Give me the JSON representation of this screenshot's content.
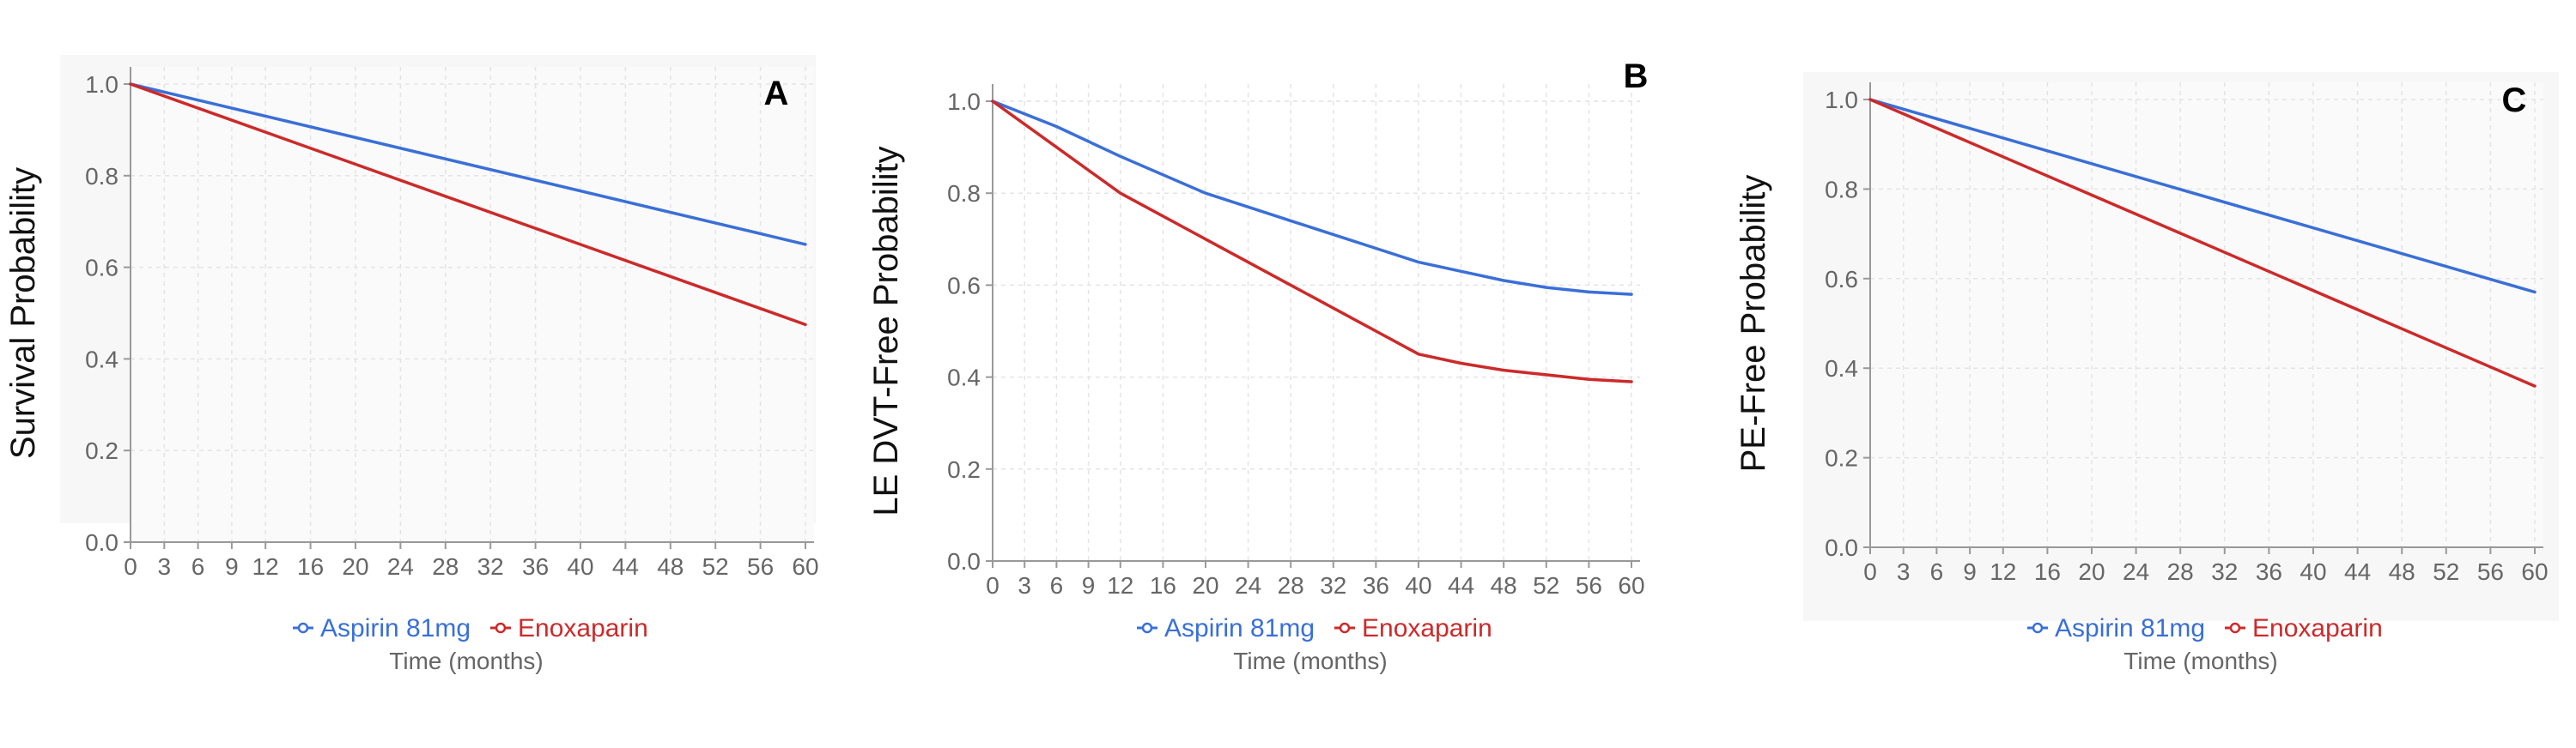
{
  "colors": {
    "aspirin": "#3a6fd8",
    "enoxaparin": "#cc2a2a"
  },
  "chart_data": [
    {
      "type": "line",
      "panel_label": "A",
      "ylabel": "Survival Probability",
      "xlabel": "Time (months)",
      "xlim": [
        0,
        60
      ],
      "ylim": [
        0,
        1
      ],
      "x_ticks": [
        0,
        3,
        6,
        9,
        12,
        16,
        20,
        24,
        28,
        32,
        36,
        40,
        44,
        48,
        52,
        56,
        60
      ],
      "x_tick_labels": [
        "0",
        "3",
        "6",
        "9",
        "12",
        "16",
        "20",
        "24",
        "28",
        "32",
        "36",
        "40",
        "44",
        "48",
        "52",
        "56",
        "60"
      ],
      "y_ticks": [
        0,
        0.2,
        0.4,
        0.6,
        0.8,
        1.0
      ],
      "y_tick_labels": [
        "0.0",
        "0.2",
        "0.4",
        "0.6",
        "0.8",
        "1.0"
      ],
      "grid": true,
      "legend_position": "bottom",
      "series": [
        {
          "name": "Aspirin 81mg",
          "color": "#3a6fd8",
          "x": [
            0,
            60
          ],
          "y": [
            1.0,
            0.65
          ]
        },
        {
          "name": "Enoxaparin",
          "color": "#cc2a2a",
          "x": [
            0,
            60
          ],
          "y": [
            1.0,
            0.475
          ]
        }
      ]
    },
    {
      "type": "line",
      "panel_label": "B",
      "ylabel": "LE DVT-Free Probability",
      "xlabel": "Time (months)",
      "xlim": [
        0,
        60
      ],
      "ylim": [
        0,
        1
      ],
      "x_ticks": [
        0,
        3,
        6,
        9,
        12,
        16,
        20,
        24,
        28,
        32,
        36,
        40,
        44,
        48,
        52,
        56,
        60
      ],
      "x_tick_labels": [
        "0",
        "3",
        "6",
        "9",
        "12",
        "16",
        "20",
        "24",
        "28",
        "32",
        "36",
        "40",
        "44",
        "48",
        "52",
        "56",
        "60"
      ],
      "y_ticks": [
        0,
        0.2,
        0.4,
        0.6,
        0.8,
        1.0
      ],
      "y_tick_labels": [
        "0.0",
        "0.2",
        "0.4",
        "0.6",
        "0.8",
        "1.0"
      ],
      "grid": true,
      "legend_position": "bottom",
      "series": [
        {
          "name": "Aspirin 81mg",
          "color": "#3a6fd8",
          "x": [
            0,
            6,
            12,
            20,
            28,
            36,
            40,
            44,
            48,
            52,
            56,
            60
          ],
          "y": [
            1.0,
            0.945,
            0.88,
            0.8,
            0.74,
            0.68,
            0.65,
            0.63,
            0.61,
            0.595,
            0.585,
            0.58
          ]
        },
        {
          "name": "Enoxaparin",
          "color": "#cc2a2a",
          "x": [
            0,
            6,
            12,
            20,
            28,
            36,
            40,
            44,
            48,
            52,
            56,
            60
          ],
          "y": [
            1.0,
            0.9,
            0.8,
            0.7,
            0.6,
            0.5,
            0.45,
            0.43,
            0.415,
            0.405,
            0.395,
            0.39
          ]
        }
      ]
    },
    {
      "type": "line",
      "panel_label": "C",
      "ylabel": "PE-Free Probability",
      "xlabel": "Time (months)",
      "xlim": [
        0,
        60
      ],
      "ylim": [
        0,
        1
      ],
      "x_ticks": [
        0,
        3,
        6,
        9,
        12,
        16,
        20,
        24,
        28,
        32,
        36,
        40,
        44,
        48,
        52,
        56,
        60
      ],
      "x_tick_labels": [
        "0",
        "3",
        "6",
        "9",
        "12",
        "16",
        "20",
        "24",
        "28",
        "32",
        "36",
        "40",
        "44",
        "48",
        "52",
        "56",
        "60"
      ],
      "y_ticks": [
        0,
        0.2,
        0.4,
        0.6,
        0.8,
        1.0
      ],
      "y_tick_labels": [
        "0.0",
        "0.2",
        "0.4",
        "0.6",
        "0.8",
        "1.0"
      ],
      "grid": true,
      "legend_position": "bottom",
      "series": [
        {
          "name": "Aspirin 81mg",
          "color": "#3a6fd8",
          "x": [
            0,
            60
          ],
          "y": [
            1.0,
            0.57
          ]
        },
        {
          "name": "Enoxaparin",
          "color": "#cc2a2a",
          "x": [
            0,
            60
          ],
          "y": [
            1.0,
            0.36
          ]
        }
      ]
    }
  ]
}
